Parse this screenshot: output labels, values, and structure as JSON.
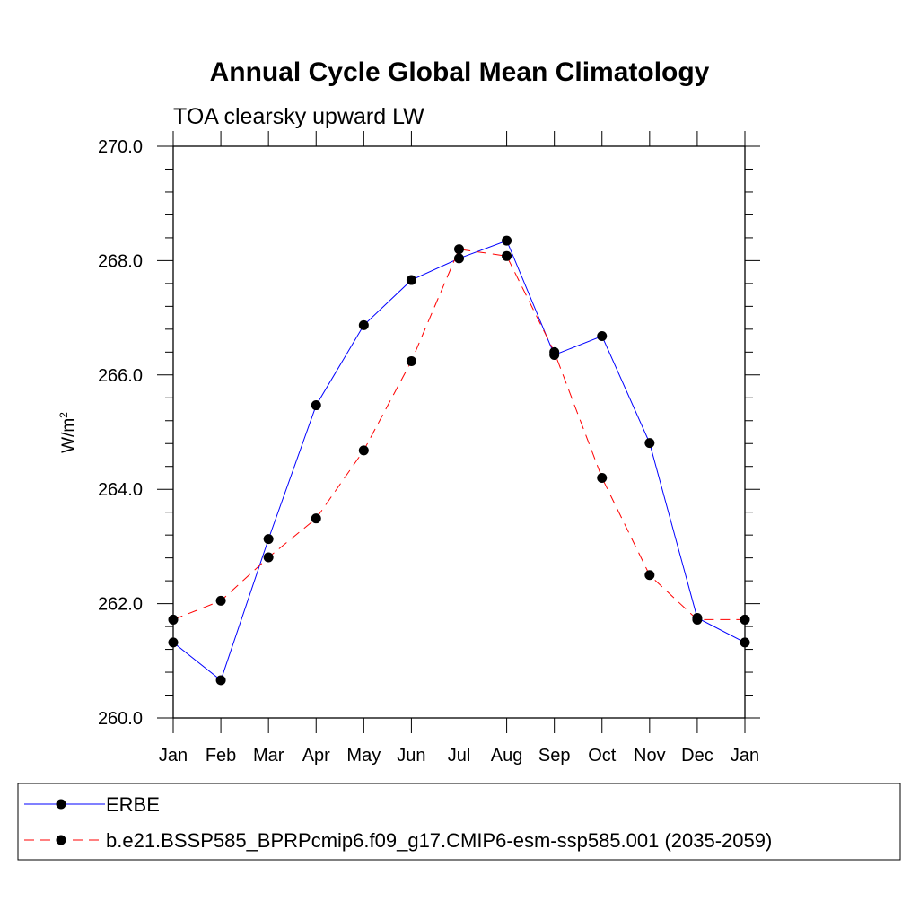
{
  "chart_data": {
    "type": "line",
    "title": "Annual Cycle Global Mean Climatology",
    "subtitle": "TOA clearsky upward LW",
    "ylabel": "W/m",
    "ylabel_superscript": "2",
    "xlabel": "",
    "categories": [
      "Jan",
      "Feb",
      "Mar",
      "Apr",
      "May",
      "Jun",
      "Jul",
      "Aug",
      "Sep",
      "Oct",
      "Nov",
      "Dec",
      "Jan"
    ],
    "ylim": [
      260.0,
      270.0
    ],
    "yticks": [
      "260.0",
      "262.0",
      "264.0",
      "266.0",
      "268.0",
      "270.0"
    ],
    "grid": false,
    "legend_position": "bottom",
    "series": [
      {
        "name": "ERBE",
        "color": "#0000ff",
        "line_style": "solid",
        "marker": "filled-circle",
        "values": [
          261.32,
          260.66,
          263.13,
          265.47,
          266.87,
          267.66,
          268.04,
          268.35,
          266.35,
          266.68,
          264.81,
          261.75,
          261.32
        ]
      },
      {
        "name": "b.e21.BSSP585_BPRPcmip6.f09_g17.CMIP6-esm-ssp585.001 (2035-2059)",
        "color": "#ff0000",
        "line_style": "dashed",
        "marker": "filled-circle",
        "values": [
          261.72,
          262.05,
          262.81,
          263.49,
          264.68,
          266.24,
          268.2,
          268.08,
          266.4,
          264.2,
          262.5,
          261.72,
          261.72
        ]
      }
    ]
  }
}
